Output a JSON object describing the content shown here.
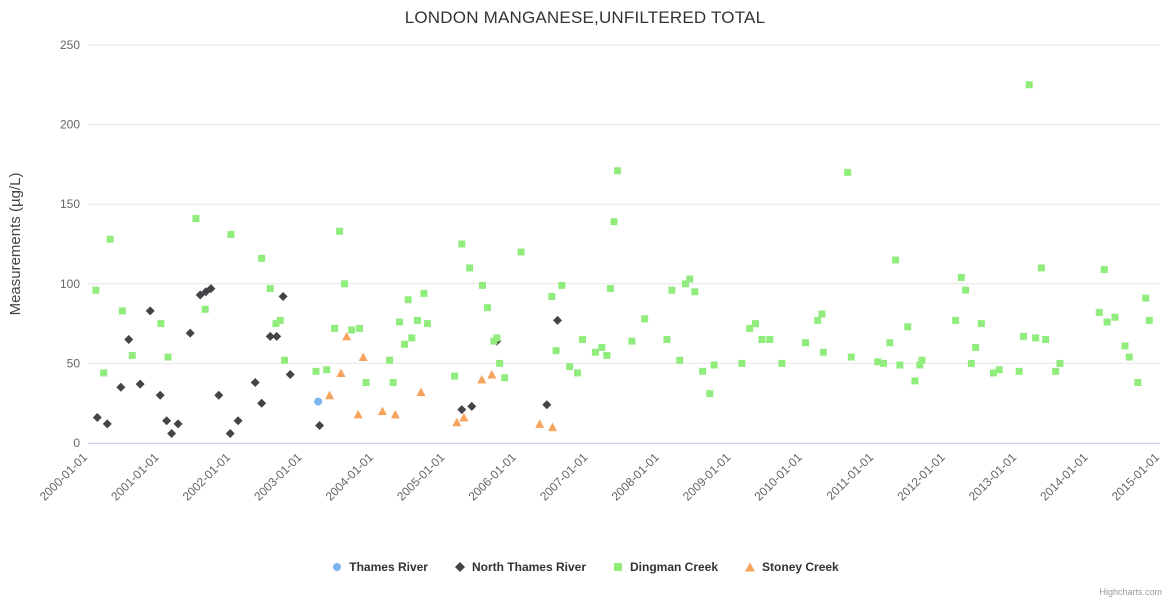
{
  "title": "LONDON MANGANESE,UNFILTERED TOTAL",
  "credits": "Highcharts.com",
  "y_axis": {
    "label": "Measurements (µg/L)",
    "ticks": [
      0,
      50,
      100,
      150,
      200,
      250
    ]
  },
  "x_axis": {
    "tick_labels": [
      "2000-01-01",
      "2001-01-01",
      "2002-01-01",
      "2003-01-01",
      "2004-01-01",
      "2005-01-01",
      "2006-01-01",
      "2007-01-01",
      "2008-01-01",
      "2009-01-01",
      "2010-01-01",
      "2011-01-01",
      "2012-01-01",
      "2013-01-01",
      "2014-01-01",
      "2015-01-01"
    ]
  },
  "colors": {
    "grid": "#e6e6e6",
    "axis_line": "#ccd6eb",
    "tick_text": "#666666",
    "title_text": "#333333",
    "axis_title_text": "#444444"
  },
  "chart_data": {
    "type": "scatter",
    "title": "LONDON MANGANESE,UNFILTERED TOTAL",
    "xlabel": "",
    "ylabel": "Measurements (µg/L)",
    "x_range_years": [
      2000,
      2015
    ],
    "ylim": [
      0,
      250
    ],
    "grid": "horizontal",
    "legend_position": "bottom",
    "series": [
      {
        "name": "Thames River",
        "color": "#7cb5ec",
        "marker": "circle",
        "points": [
          [
            2003.22,
            26
          ]
        ]
      },
      {
        "name": "North Thames River",
        "color": "#434348",
        "marker": "diamond",
        "points": [
          [
            2000.13,
            16
          ],
          [
            2000.27,
            12
          ],
          [
            2000.46,
            35
          ],
          [
            2000.57,
            65
          ],
          [
            2000.73,
            37
          ],
          [
            2000.87,
            83
          ],
          [
            2001.01,
            30
          ],
          [
            2001.1,
            14
          ],
          [
            2001.17,
            6
          ],
          [
            2001.26,
            12
          ],
          [
            2001.43,
            69
          ],
          [
            2001.57,
            93
          ],
          [
            2001.65,
            95
          ],
          [
            2001.72,
            97
          ],
          [
            2001.83,
            30
          ],
          [
            2001.99,
            6
          ],
          [
            2002.1,
            14
          ],
          [
            2002.34,
            38
          ],
          [
            2002.43,
            25
          ],
          [
            2002.55,
            67
          ],
          [
            2002.64,
            67
          ],
          [
            2002.73,
            92
          ],
          [
            2002.83,
            43
          ],
          [
            2003.24,
            11
          ],
          [
            2005.23,
            21
          ],
          [
            2005.37,
            23
          ],
          [
            2005.72,
            64
          ],
          [
            2006.42,
            24
          ],
          [
            2006.57,
            77
          ]
        ]
      },
      {
        "name": "Dingman Creek",
        "color": "#90ed7d",
        "marker": "square",
        "points": [
          [
            2000.11,
            96
          ],
          [
            2000.22,
            44
          ],
          [
            2000.31,
            128
          ],
          [
            2000.48,
            83
          ],
          [
            2000.62,
            55
          ],
          [
            2001.02,
            75
          ],
          [
            2001.12,
            54
          ],
          [
            2001.51,
            141
          ],
          [
            2001.64,
            84
          ],
          [
            2002.0,
            131
          ],
          [
            2002.43,
            116
          ],
          [
            2002.55,
            97
          ],
          [
            2002.63,
            75
          ],
          [
            2002.69,
            77
          ],
          [
            2002.75,
            52
          ],
          [
            2003.19,
            45
          ],
          [
            2003.34,
            46
          ],
          [
            2003.45,
            72
          ],
          [
            2003.52,
            133
          ],
          [
            2003.59,
            100
          ],
          [
            2003.69,
            71
          ],
          [
            2003.8,
            72
          ],
          [
            2003.89,
            38
          ],
          [
            2004.22,
            52
          ],
          [
            2004.27,
            38
          ],
          [
            2004.36,
            76
          ],
          [
            2004.43,
            62
          ],
          [
            2004.48,
            90
          ],
          [
            2004.53,
            66
          ],
          [
            2004.61,
            77
          ],
          [
            2004.7,
            94
          ],
          [
            2004.75,
            75
          ],
          [
            2005.13,
            42
          ],
          [
            2005.23,
            125
          ],
          [
            2005.34,
            110
          ],
          [
            2005.52,
            99
          ],
          [
            2005.59,
            85
          ],
          [
            2005.68,
            64
          ],
          [
            2005.72,
            66
          ],
          [
            2005.76,
            50
          ],
          [
            2005.83,
            41
          ],
          [
            2006.06,
            120
          ],
          [
            2006.49,
            92
          ],
          [
            2006.55,
            58
          ],
          [
            2006.63,
            99
          ],
          [
            2006.74,
            48
          ],
          [
            2006.85,
            44
          ],
          [
            2006.92,
            65
          ],
          [
            2007.1,
            57
          ],
          [
            2007.19,
            60
          ],
          [
            2007.26,
            55
          ],
          [
            2007.31,
            97
          ],
          [
            2007.36,
            139
          ],
          [
            2007.41,
            171
          ],
          [
            2007.61,
            64
          ],
          [
            2007.79,
            78
          ],
          [
            2008.1,
            65
          ],
          [
            2008.17,
            96
          ],
          [
            2008.28,
            52
          ],
          [
            2008.36,
            100
          ],
          [
            2008.42,
            103
          ],
          [
            2008.49,
            95
          ],
          [
            2008.6,
            45
          ],
          [
            2008.7,
            31
          ],
          [
            2008.76,
            49
          ],
          [
            2009.15,
            50
          ],
          [
            2009.26,
            72
          ],
          [
            2009.34,
            75
          ],
          [
            2009.43,
            65
          ],
          [
            2009.54,
            65
          ],
          [
            2009.71,
            50
          ],
          [
            2010.04,
            63
          ],
          [
            2010.21,
            77
          ],
          [
            2010.27,
            81
          ],
          [
            2010.29,
            57
          ],
          [
            2010.63,
            170
          ],
          [
            2010.68,
            54
          ],
          [
            2011.05,
            51
          ],
          [
            2011.13,
            50
          ],
          [
            2011.22,
            63
          ],
          [
            2011.3,
            115
          ],
          [
            2011.36,
            49
          ],
          [
            2011.47,
            73
          ],
          [
            2011.57,
            39
          ],
          [
            2011.64,
            49
          ],
          [
            2011.67,
            52
          ],
          [
            2012.14,
            77
          ],
          [
            2012.22,
            104
          ],
          [
            2012.28,
            96
          ],
          [
            2012.36,
            50
          ],
          [
            2012.42,
            60
          ],
          [
            2012.5,
            75
          ],
          [
            2012.67,
            44
          ],
          [
            2012.75,
            46
          ],
          [
            2013.03,
            45
          ],
          [
            2013.09,
            67
          ],
          [
            2013.17,
            225
          ],
          [
            2013.26,
            66
          ],
          [
            2013.34,
            110
          ],
          [
            2013.4,
            65
          ],
          [
            2013.54,
            45
          ],
          [
            2013.6,
            50
          ],
          [
            2014.15,
            82
          ],
          [
            2014.22,
            109
          ],
          [
            2014.26,
            76
          ],
          [
            2014.37,
            79
          ],
          [
            2014.51,
            61
          ],
          [
            2014.57,
            54
          ],
          [
            2014.69,
            38
          ],
          [
            2014.8,
            91
          ],
          [
            2014.85,
            77
          ]
        ]
      },
      {
        "name": "Stoney Creek",
        "color": "#f7a35c",
        "marker": "triangle",
        "points": [
          [
            2003.38,
            30
          ],
          [
            2003.54,
            44
          ],
          [
            2003.62,
            67
          ],
          [
            2003.78,
            18
          ],
          [
            2003.85,
            54
          ],
          [
            2004.12,
            20
          ],
          [
            2004.3,
            18
          ],
          [
            2004.66,
            32
          ],
          [
            2005.16,
            13
          ],
          [
            2005.26,
            16
          ],
          [
            2005.51,
            40
          ],
          [
            2005.65,
            43
          ],
          [
            2006.32,
            12
          ],
          [
            2006.5,
            10
          ]
        ]
      }
    ]
  }
}
